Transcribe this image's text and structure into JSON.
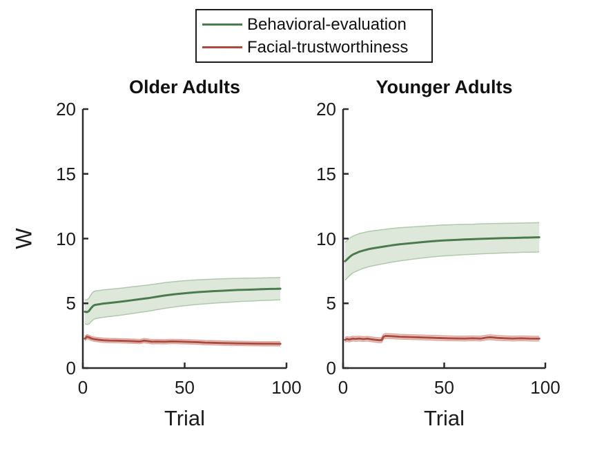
{
  "figure": {
    "background": "#ffffff",
    "axis_color": "#2b2b2b",
    "text_color": "#1c1c1c"
  },
  "legend": {
    "entries": [
      {
        "label": "Behavioral-evaluation",
        "color": "#4a7b4c"
      },
      {
        "label": "Facial-trustworthiness",
        "color": "#ad4a40"
      }
    ]
  },
  "chart_data": [
    {
      "type": "line",
      "title": "Older Adults",
      "xlabel": "Trial",
      "ylabel": "W",
      "xlim": [
        0,
        100
      ],
      "ylim": [
        0,
        20
      ],
      "xticks": [
        0,
        50,
        100
      ],
      "xtick_labels": [
        "0",
        "50",
        "100"
      ],
      "yticks": [
        0,
        5,
        10,
        15,
        20
      ],
      "ytick_labels": [
        "0",
        "5",
        "10",
        "15",
        "20"
      ],
      "grid": false,
      "legend_position": "top-center-above-axes",
      "series": [
        {
          "name": "Behavioral-evaluation",
          "color": "#4a7b4c",
          "band_fill": "#dde8da",
          "band_edge": "#afc9ab",
          "x": [
            1,
            2,
            3,
            4,
            5,
            6,
            8,
            10,
            13,
            16,
            20,
            24,
            28,
            32,
            36,
            40,
            44,
            48,
            52,
            56,
            60,
            64,
            68,
            72,
            76,
            80,
            84,
            88,
            92,
            95,
            97
          ],
          "mean": [
            4.35,
            4.32,
            4.4,
            4.62,
            4.8,
            4.88,
            4.93,
            4.98,
            5.03,
            5.08,
            5.15,
            5.24,
            5.32,
            5.4,
            5.5,
            5.6,
            5.68,
            5.75,
            5.81,
            5.86,
            5.9,
            5.94,
            5.97,
            6.0,
            6.03,
            6.05,
            6.07,
            6.09,
            6.11,
            6.12,
            6.13
          ],
          "half_width": [
            0.92,
            0.95,
            1.0,
            1.05,
            1.07,
            1.07,
            1.06,
            1.06,
            1.05,
            1.05,
            1.04,
            1.03,
            1.02,
            1.01,
            1.0,
            0.99,
            0.98,
            0.97,
            0.96,
            0.95,
            0.94,
            0.93,
            0.92,
            0.91,
            0.9,
            0.89,
            0.88,
            0.87,
            0.87,
            0.86,
            0.86
          ]
        },
        {
          "name": "Facial-trustworthiness",
          "color": "#ad4a40",
          "band_fill": "#f2d7d2",
          "band_edge": "#dba49b",
          "x": [
            1,
            2,
            3,
            4,
            5,
            6,
            8,
            10,
            13,
            16,
            20,
            24,
            28,
            30,
            32,
            34,
            36,
            40,
            44,
            48,
            52,
            56,
            60,
            64,
            68,
            72,
            76,
            80,
            84,
            88,
            92,
            95,
            97
          ],
          "mean": [
            2.28,
            2.42,
            2.38,
            2.3,
            2.25,
            2.22,
            2.18,
            2.15,
            2.13,
            2.12,
            2.1,
            2.08,
            2.05,
            2.12,
            2.08,
            2.03,
            2.05,
            2.03,
            2.06,
            2.04,
            2.02,
            2.0,
            1.97,
            1.95,
            1.93,
            1.92,
            1.91,
            1.9,
            1.89,
            1.88,
            1.88,
            1.87,
            1.87
          ],
          "half_width": 0.16
        }
      ]
    },
    {
      "type": "line",
      "title": "Younger Adults",
      "xlabel": "Trial",
      "ylabel": "",
      "xlim": [
        0,
        100
      ],
      "ylim": [
        0,
        20
      ],
      "xticks": [
        0,
        50,
        100
      ],
      "xtick_labels": [
        "0",
        "50",
        "100"
      ],
      "yticks": [
        0,
        5,
        10,
        15,
        20
      ],
      "ytick_labels": [
        "0",
        "5",
        "10",
        "15",
        "20"
      ],
      "grid": false,
      "legend_position": "top-center-above-axes",
      "series": [
        {
          "name": "Behavioral-evaluation",
          "color": "#4a7b4c",
          "band_fill": "#dde8da",
          "band_edge": "#afc9ab",
          "x": [
            1,
            2,
            3,
            4,
            5,
            6,
            8,
            10,
            13,
            16,
            20,
            24,
            28,
            32,
            36,
            40,
            44,
            48,
            52,
            56,
            60,
            64,
            68,
            72,
            76,
            80,
            84,
            88,
            92,
            95,
            97
          ],
          "mean": [
            8.25,
            8.4,
            8.55,
            8.68,
            8.78,
            8.85,
            8.98,
            9.08,
            9.2,
            9.28,
            9.38,
            9.48,
            9.56,
            9.62,
            9.68,
            9.74,
            9.79,
            9.84,
            9.87,
            9.9,
            9.93,
            9.95,
            9.98,
            10.0,
            10.02,
            10.04,
            10.05,
            10.07,
            10.08,
            10.09,
            10.1
          ],
          "half_width": [
            1.45,
            1.45,
            1.44,
            1.43,
            1.42,
            1.41,
            1.4,
            1.38,
            1.36,
            1.34,
            1.32,
            1.3,
            1.28,
            1.26,
            1.24,
            1.22,
            1.21,
            1.2,
            1.19,
            1.18,
            1.17,
            1.16,
            1.16,
            1.15,
            1.15,
            1.14,
            1.14,
            1.13,
            1.13,
            1.13,
            1.13
          ]
        },
        {
          "name": "Facial-trustworthiness",
          "color": "#ad4a40",
          "band_fill": "#f2d7d2",
          "band_edge": "#dba49b",
          "x": [
            1,
            2,
            3,
            4,
            5,
            6,
            8,
            10,
            12,
            14,
            16,
            18,
            19,
            20,
            21,
            24,
            28,
            32,
            36,
            40,
            44,
            48,
            52,
            56,
            60,
            64,
            68,
            71,
            73,
            76,
            80,
            84,
            88,
            92,
            95,
            97
          ],
          "mean": [
            2.18,
            2.25,
            2.2,
            2.24,
            2.28,
            2.25,
            2.28,
            2.24,
            2.27,
            2.22,
            2.18,
            2.15,
            2.16,
            2.42,
            2.48,
            2.46,
            2.42,
            2.4,
            2.38,
            2.36,
            2.34,
            2.32,
            2.3,
            2.29,
            2.28,
            2.3,
            2.28,
            2.36,
            2.38,
            2.33,
            2.3,
            2.28,
            2.3,
            2.28,
            2.27,
            2.27
          ],
          "half_width": 0.18
        }
      ]
    }
  ]
}
